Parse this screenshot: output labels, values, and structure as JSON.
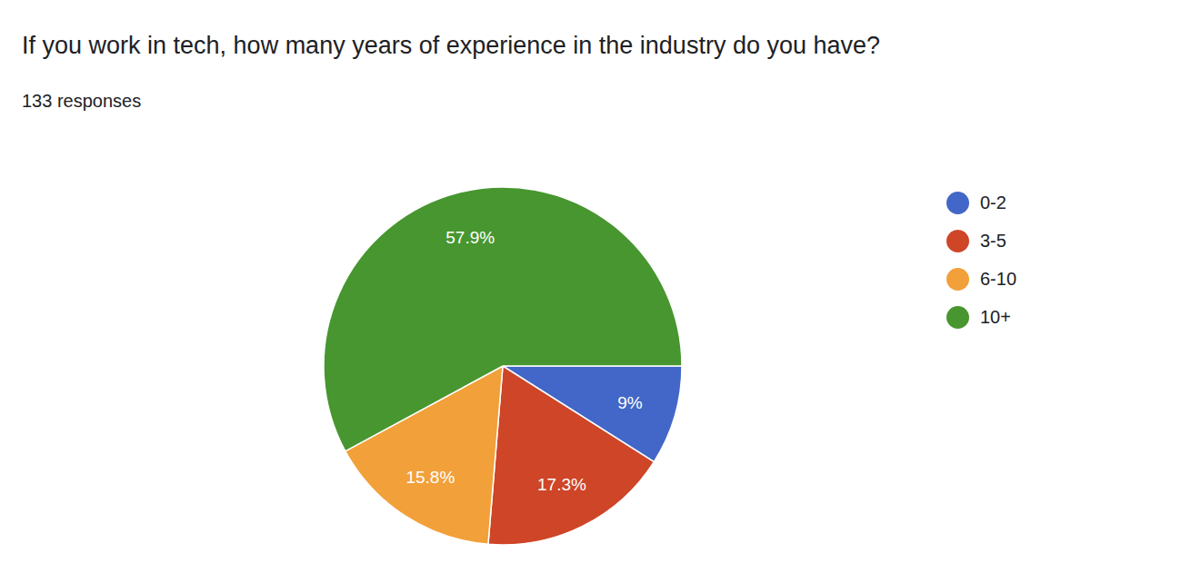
{
  "chart_data": {
    "type": "pie",
    "title": "If you work in tech, how many years of experience in the industry do you have?",
    "subtitle": "133 responses",
    "categories": [
      "0-2",
      "3-5",
      "6-10",
      "10+"
    ],
    "values": [
      9,
      17.3,
      15.8,
      57.9
    ],
    "value_labels": [
      "9%",
      "17.3%",
      "15.8%",
      "57.9%"
    ],
    "colors": [
      "#4267c8",
      "#ce4527",
      "#f2a03a",
      "#47962f"
    ],
    "data_labels": true,
    "legend": "right"
  }
}
